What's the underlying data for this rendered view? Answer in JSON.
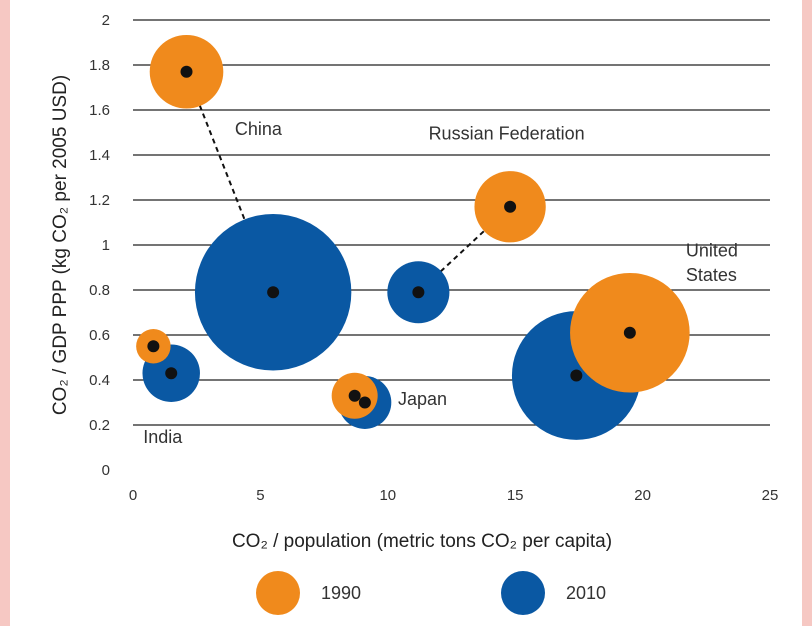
{
  "chart_data": {
    "type": "scatter",
    "subtype": "bubble",
    "xlabel": "CO₂ / population (metric tons CO₂ per capita)",
    "ylabel": "CO₂ / GDP PPP (kg CO₂ per 2005 USD)",
    "xlim": [
      0,
      25
    ],
    "ylim": [
      0,
      2
    ],
    "x_ticks": [
      0,
      5,
      10,
      15,
      20,
      25
    ],
    "y_ticks": [
      0,
      0.2,
      0.4,
      0.6,
      0.8,
      1,
      1.2,
      1.4,
      1.6,
      1.8,
      2
    ],
    "y_tick_labels": [
      "0",
      "0.2",
      "0.4",
      "0.6",
      "0.8",
      "1",
      "1.2",
      "1.4",
      "1.6",
      "1.8",
      "2"
    ],
    "x_tick_labels": [
      "0",
      "5",
      "10",
      "15",
      "20",
      "25"
    ],
    "grid": "horizontal",
    "series": [
      {
        "name": "1990",
        "color": "#f08a1c",
        "points": [
          {
            "country": "China",
            "x": 2.1,
            "y": 1.77,
            "size": 1.6
          },
          {
            "country": "India",
            "x": 0.8,
            "y": 0.55,
            "size": 0.75
          },
          {
            "country": "Japan",
            "x": 8.7,
            "y": 0.33,
            "size": 1.0
          },
          {
            "country": "Russian Federation",
            "x": 14.8,
            "y": 1.17,
            "size": 1.55
          },
          {
            "country": "United States",
            "x": 19.5,
            "y": 0.61,
            "size": 2.6
          }
        ]
      },
      {
        "name": "2010",
        "color": "#0a58a3",
        "points": [
          {
            "country": "China",
            "x": 5.5,
            "y": 0.79,
            "size": 3.4
          },
          {
            "country": "India",
            "x": 1.5,
            "y": 0.43,
            "size": 1.25
          },
          {
            "country": "Japan",
            "x": 9.1,
            "y": 0.3,
            "size": 1.15
          },
          {
            "country": "Russian Federation",
            "x": 11.2,
            "y": 0.79,
            "size": 1.35
          },
          {
            "country": "United States",
            "x": 17.4,
            "y": 0.42,
            "size": 2.8
          }
        ]
      }
    ],
    "annotations": [
      {
        "text": "China",
        "x": 4.0,
        "y": 1.49
      },
      {
        "text": "Russian Federation",
        "x": 11.6,
        "y": 1.47
      },
      {
        "text": "United",
        "x": 21.7,
        "y": 0.95
      },
      {
        "text": "States",
        "x": 21.7,
        "y": 0.84
      },
      {
        "text": "Japan",
        "x": 10.4,
        "y": 0.29
      },
      {
        "text": "India",
        "x": 0.4,
        "y": 0.12
      }
    ],
    "legend": {
      "placement": "bottom",
      "entries": [
        "1990",
        "2010"
      ]
    }
  }
}
